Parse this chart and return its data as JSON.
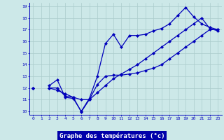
{
  "xlabel": "Graphe des températures (°c)",
  "x_values": [
    0,
    1,
    2,
    3,
    4,
    5,
    6,
    7,
    8,
    9,
    10,
    11,
    12,
    13,
    14,
    15,
    16,
    17,
    18,
    19,
    20,
    21,
    22,
    23
  ],
  "line1": [
    12.0,
    null,
    12.2,
    12.7,
    11.2,
    11.1,
    10.0,
    11.1,
    13.0,
    15.8,
    16.6,
    15.5,
    16.5,
    16.5,
    16.6,
    16.9,
    17.1,
    17.5,
    18.2,
    18.9,
    18.1,
    17.5,
    17.2,
    17.0
  ],
  "line2": [
    12.0,
    null,
    12.0,
    12.0,
    11.3,
    11.2,
    9.95,
    11.0,
    12.3,
    13.0,
    13.1,
    13.1,
    13.2,
    13.3,
    13.5,
    13.7,
    14.0,
    14.5,
    15.0,
    15.5,
    16.0,
    16.5,
    17.0,
    17.0
  ],
  "line3": [
    12.0,
    null,
    12.0,
    11.8,
    11.5,
    11.2,
    11.0,
    11.0,
    11.6,
    12.2,
    12.8,
    13.2,
    13.6,
    14.0,
    14.5,
    15.0,
    15.5,
    16.0,
    16.5,
    17.0,
    17.5,
    18.0,
    17.1,
    16.9
  ],
  "ylim": [
    10,
    19
  ],
  "xlim": [
    0,
    23
  ],
  "bg_color": "#cce8e8",
  "grid_color": "#aacccc",
  "line_color": "#0000bb",
  "marker": "D",
  "marker_size": 2.0,
  "linewidth": 0.9,
  "yticks": [
    10,
    11,
    12,
    13,
    14,
    15,
    16,
    17,
    18,
    19
  ],
  "xticks": [
    0,
    1,
    2,
    3,
    4,
    5,
    6,
    7,
    8,
    9,
    10,
    11,
    12,
    13,
    14,
    15,
    16,
    17,
    18,
    19,
    20,
    21,
    22,
    23
  ],
  "xlabel_bg": "#0000aa",
  "xlabel_fg": "#ffffff"
}
